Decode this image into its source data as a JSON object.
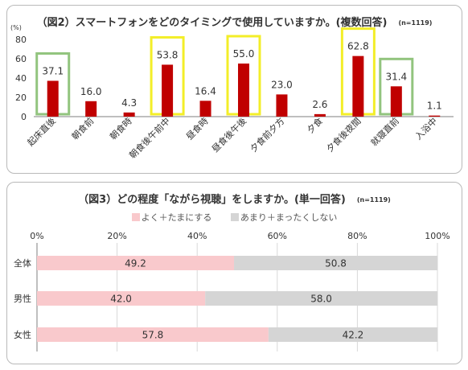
{
  "colors": {
    "bar_red": "#c00000",
    "highlight_green": "#92c47e",
    "highlight_yellow": "#f3ee28",
    "bar_pink": "#f9c9cc",
    "bar_gray": "#d5d5d5",
    "grid": "#d9d9d9",
    "axis": "#7f7f7f"
  },
  "chart1": {
    "title": "（図2）スマートフォンをどのタイミングで使用していますか。(複数回答)",
    "n_label": "(n=1119)"
  },
  "chart2": {
    "title": "（図3）どの程度「ながら視聴」をしますか。(単一回答)",
    "n_label": "(n=1119)"
  },
  "chart_data": [
    {
      "type": "bar",
      "ylabel": "(%)",
      "ylim": [
        0,
        80
      ],
      "yticks": [
        "0",
        "20",
        "40",
        "60",
        "80"
      ],
      "grid": false,
      "categories": [
        "起床直後",
        "朝食前",
        "朝食時",
        "朝食後午前中",
        "昼食時",
        "昼食後午後",
        "夕食前夕方",
        "夕食",
        "夕食後夜間",
        "就寝直前",
        "入浴中"
      ],
      "values": [
        37.1,
        16.0,
        4.3,
        53.8,
        16.4,
        55.0,
        23.0,
        2.6,
        62.8,
        31.4,
        1.1
      ],
      "value_labels": [
        "37.1",
        "16.0",
        "4.3",
        "53.8",
        "16.4",
        "55.0",
        "23.0",
        "2.6",
        "62.8",
        "31.4",
        "1.1"
      ],
      "highlight": [
        "green",
        "none",
        "none",
        "yellow",
        "none",
        "yellow",
        "none",
        "none",
        "yellow",
        "green",
        "none"
      ]
    },
    {
      "type": "bar",
      "orientation": "horizontal-stacked",
      "xlim": [
        0,
        100
      ],
      "xticks": [
        "0%",
        "20%",
        "40%",
        "60%",
        "80%",
        "100%"
      ],
      "grid": true,
      "legend_position": "top",
      "categories": [
        "全体",
        "男性",
        "女性"
      ],
      "series": [
        {
          "name": "よく＋たまにする",
          "values": [
            49.2,
            42.0,
            57.8
          ],
          "labels": [
            "49.2",
            "42.0",
            "57.8"
          ]
        },
        {
          "name": "あまり＋まったくしない",
          "values": [
            50.8,
            58.0,
            42.2
          ],
          "labels": [
            "50.8",
            "58.0",
            "42.2"
          ]
        }
      ]
    }
  ]
}
